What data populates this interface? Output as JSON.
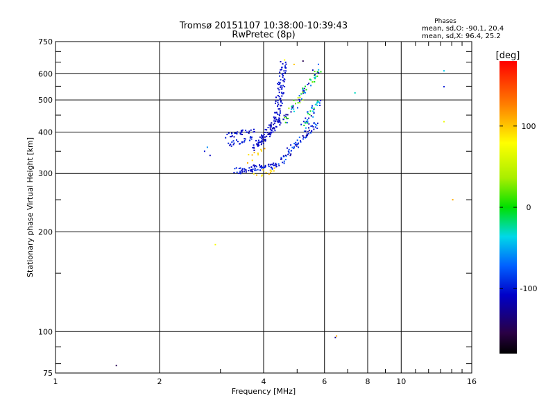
{
  "chart_data": {
    "type": "scatter",
    "title": "Tromsø 20151107 10:38:00-10:39:43",
    "subtitle": "RwPretec (8p)",
    "xlabel": "Frequency [MHz]",
    "ylabel": "Stationary phase Virtual Height [km]",
    "x_scale": "log",
    "y_scale": "log",
    "xlim": [
      1,
      16
    ],
    "ylim": [
      75,
      750
    ],
    "x_ticks": [
      1,
      2,
      4,
      6,
      8,
      10,
      16
    ],
    "y_ticks": [
      75,
      100,
      200,
      300,
      400,
      500,
      600,
      750
    ],
    "grid": true,
    "phase_info": {
      "title": "Phases",
      "line_o": "mean, sd,O: -90.1, 20.4",
      "line_x": "mean, sd,X:  96.4, 25.2"
    },
    "colorbar": {
      "label": "[deg]",
      "min": -180,
      "max": 180,
      "ticks": [
        100,
        0,
        -100
      ]
    },
    "scatter_traces": [
      {
        "xs": 3.1,
        "xe": 3.7,
        "ys": 392,
        "ye": 405,
        "n": 30,
        "phase": -105,
        "spread": 15
      },
      {
        "xs": 3.15,
        "xe": 3.75,
        "ys": 372,
        "ye": 382,
        "n": 26,
        "phase": -100,
        "spread": 15
      },
      {
        "xs": 3.75,
        "xe": 4.45,
        "ys": 360,
        "ye": 440,
        "n": 90,
        "phase": -110,
        "spread": 12
      },
      {
        "xs": 4.35,
        "xe": 4.55,
        "ys": 440,
        "ye": 650,
        "n": 80,
        "phase": -105,
        "spread": 10
      },
      {
        "xs": 3.3,
        "xe": 4.4,
        "ys": 305,
        "ye": 320,
        "n": 70,
        "phase": -100,
        "spread": 15
      },
      {
        "xs": 4.4,
        "xe": 5.7,
        "ys": 325,
        "ye": 430,
        "n": 70,
        "phase": -95,
        "spread": 30
      },
      {
        "xs": 5.2,
        "xe": 5.75,
        "ys": 420,
        "ye": 500,
        "n": 40,
        "phase": -60,
        "spread": 60
      },
      {
        "xs": 4.55,
        "xe": 5.8,
        "ys": 430,
        "ye": 630,
        "n": 70,
        "phase": -40,
        "spread": 90
      },
      {
        "xs": 3.8,
        "xe": 4.3,
        "ys": 300,
        "ye": 310,
        "n": 12,
        "phase": 95,
        "spread": 15
      },
      {
        "xs": 3.6,
        "xe": 4.0,
        "ys": 330,
        "ye": 360,
        "n": 10,
        "phase": 100,
        "spread": 15
      }
    ],
    "outlier_points": [
      {
        "x": 1.5,
        "y": 79,
        "phase": -150
      },
      {
        "x": 2.9,
        "y": 183,
        "phase": 75
      },
      {
        "x": 6.5,
        "y": 97,
        "phase": 110
      },
      {
        "x": 6.45,
        "y": 96,
        "phase": -130
      },
      {
        "x": 7.35,
        "y": 525,
        "phase": -30
      },
      {
        "x": 13.3,
        "y": 612,
        "phase": -40
      },
      {
        "x": 13.3,
        "y": 548,
        "phase": -100
      },
      {
        "x": 13.3,
        "y": 430,
        "phase": 70
      },
      {
        "x": 14.1,
        "y": 250,
        "phase": 110
      },
      {
        "x": 2.7,
        "y": 350,
        "phase": -100
      },
      {
        "x": 2.75,
        "y": 360,
        "phase": -60
      },
      {
        "x": 2.8,
        "y": 340,
        "phase": -110
      },
      {
        "x": 4.6,
        "y": 660,
        "phase": 80
      },
      {
        "x": 4.9,
        "y": 640,
        "phase": 100
      },
      {
        "x": 5.2,
        "y": 655,
        "phase": -150
      },
      {
        "x": 5.55,
        "y": 615,
        "phase": -120
      }
    ]
  }
}
